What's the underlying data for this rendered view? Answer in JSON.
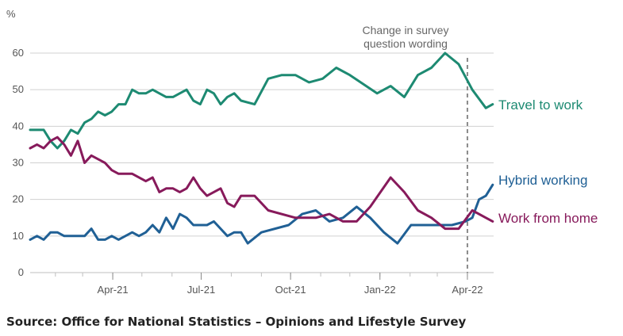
{
  "chart_data": {
    "type": "line",
    "y_unit_label": "%",
    "ylim": [
      0,
      60
    ],
    "y_ticks": [
      "0",
      "10",
      "20",
      "30",
      "40",
      "50",
      "60"
    ],
    "x_ticks": [
      {
        "label": "Apr-21",
        "date": "2021-04-01"
      },
      {
        "label": "Jul-21",
        "date": "2021-07-01"
      },
      {
        "label": "Oct-21",
        "date": "2021-10-01"
      },
      {
        "label": "Jan-22",
        "date": "2022-01-01"
      },
      {
        "label": "Apr-22",
        "date": "2022-04-01"
      }
    ],
    "x_range": [
      "2021-01-06",
      "2022-04-28"
    ],
    "grid": true,
    "annotation": {
      "lines": [
        "Change in survey",
        "question wording"
      ],
      "date": "2022-04-01"
    },
    "series": [
      {
        "name": "Travel to work",
        "color": "#1d8a72",
        "points": [
          [
            "2021-01-06",
            39
          ],
          [
            "2021-01-13",
            39
          ],
          [
            "2021-01-20",
            39
          ],
          [
            "2021-01-27",
            36
          ],
          [
            "2021-02-03",
            34
          ],
          [
            "2021-02-10",
            36
          ],
          [
            "2021-02-17",
            39
          ],
          [
            "2021-02-24",
            38
          ],
          [
            "2021-03-03",
            41
          ],
          [
            "2021-03-10",
            42
          ],
          [
            "2021-03-17",
            44
          ],
          [
            "2021-03-24",
            43
          ],
          [
            "2021-03-31",
            44
          ],
          [
            "2021-04-07",
            46
          ],
          [
            "2021-04-14",
            46
          ],
          [
            "2021-04-21",
            50
          ],
          [
            "2021-04-28",
            49
          ],
          [
            "2021-05-05",
            49
          ],
          [
            "2021-05-12",
            50
          ],
          [
            "2021-05-19",
            49
          ],
          [
            "2021-05-26",
            48
          ],
          [
            "2021-06-02",
            48
          ],
          [
            "2021-06-09",
            49
          ],
          [
            "2021-06-16",
            50
          ],
          [
            "2021-06-23",
            47
          ],
          [
            "2021-06-30",
            46
          ],
          [
            "2021-07-07",
            50
          ],
          [
            "2021-07-14",
            49
          ],
          [
            "2021-07-21",
            46
          ],
          [
            "2021-07-28",
            48
          ],
          [
            "2021-08-04",
            49
          ],
          [
            "2021-08-11",
            47
          ],
          [
            "2021-08-25",
            46
          ],
          [
            "2021-09-08",
            53
          ],
          [
            "2021-09-22",
            54
          ],
          [
            "2021-10-06",
            54
          ],
          [
            "2021-10-20",
            52
          ],
          [
            "2021-11-03",
            53
          ],
          [
            "2021-11-17",
            56
          ],
          [
            "2021-12-01",
            54
          ],
          [
            "2021-12-29",
            49
          ],
          [
            "2022-01-12",
            51
          ],
          [
            "2022-01-26",
            48
          ],
          [
            "2022-02-09",
            54
          ],
          [
            "2022-02-23",
            56
          ],
          [
            "2022-03-09",
            60
          ],
          [
            "2022-03-23",
            57
          ],
          [
            "2022-04-06",
            50
          ],
          [
            "2022-04-20",
            45
          ],
          [
            "2022-04-27",
            46
          ]
        ]
      },
      {
        "name": "Hybrid working",
        "color": "#206095",
        "points": [
          [
            "2021-01-06",
            9
          ],
          [
            "2021-01-13",
            10
          ],
          [
            "2021-01-20",
            9
          ],
          [
            "2021-01-27",
            11
          ],
          [
            "2021-02-03",
            11
          ],
          [
            "2021-02-10",
            10
          ],
          [
            "2021-02-24",
            10
          ],
          [
            "2021-03-03",
            10
          ],
          [
            "2021-03-10",
            12
          ],
          [
            "2021-03-17",
            9
          ],
          [
            "2021-03-24",
            9
          ],
          [
            "2021-03-31",
            10
          ],
          [
            "2021-04-07",
            9
          ],
          [
            "2021-04-21",
            11
          ],
          [
            "2021-04-28",
            10
          ],
          [
            "2021-05-05",
            11
          ],
          [
            "2021-05-12",
            13
          ],
          [
            "2021-05-19",
            11
          ],
          [
            "2021-05-26",
            15
          ],
          [
            "2021-06-02",
            12
          ],
          [
            "2021-06-09",
            16
          ],
          [
            "2021-06-16",
            15
          ],
          [
            "2021-06-23",
            13
          ],
          [
            "2021-07-07",
            13
          ],
          [
            "2021-07-14",
            14
          ],
          [
            "2021-07-28",
            10
          ],
          [
            "2021-08-04",
            11
          ],
          [
            "2021-08-11",
            11
          ],
          [
            "2021-08-18",
            8
          ],
          [
            "2021-09-01",
            11
          ],
          [
            "2021-09-29",
            13
          ],
          [
            "2021-10-13",
            16
          ],
          [
            "2021-10-27",
            17
          ],
          [
            "2021-11-10",
            14
          ],
          [
            "2021-11-24",
            15
          ],
          [
            "2021-12-08",
            18
          ],
          [
            "2021-12-22",
            15
          ],
          [
            "2022-01-05",
            11
          ],
          [
            "2022-01-19",
            8
          ],
          [
            "2022-02-02",
            13
          ],
          [
            "2022-02-16",
            13
          ],
          [
            "2022-03-02",
            13
          ],
          [
            "2022-03-16",
            13
          ],
          [
            "2022-03-30",
            14
          ],
          [
            "2022-04-06",
            15
          ],
          [
            "2022-04-13",
            20
          ],
          [
            "2022-04-20",
            21
          ],
          [
            "2022-04-27",
            24
          ]
        ]
      },
      {
        "name": "Work from home",
        "color": "#871a5b",
        "points": [
          [
            "2021-01-06",
            34
          ],
          [
            "2021-01-13",
            35
          ],
          [
            "2021-01-20",
            34
          ],
          [
            "2021-01-27",
            36
          ],
          [
            "2021-02-03",
            37
          ],
          [
            "2021-02-10",
            35
          ],
          [
            "2021-02-17",
            32
          ],
          [
            "2021-02-24",
            36
          ],
          [
            "2021-03-03",
            30
          ],
          [
            "2021-03-10",
            32
          ],
          [
            "2021-03-24",
            30
          ],
          [
            "2021-03-31",
            28
          ],
          [
            "2021-04-07",
            27
          ],
          [
            "2021-04-21",
            27
          ],
          [
            "2021-05-05",
            25
          ],
          [
            "2021-05-12",
            26
          ],
          [
            "2021-05-19",
            22
          ],
          [
            "2021-05-26",
            23
          ],
          [
            "2021-06-02",
            23
          ],
          [
            "2021-06-09",
            22
          ],
          [
            "2021-06-16",
            23
          ],
          [
            "2021-06-23",
            26
          ],
          [
            "2021-06-30",
            23
          ],
          [
            "2021-07-07",
            21
          ],
          [
            "2021-07-21",
            23
          ],
          [
            "2021-07-28",
            19
          ],
          [
            "2021-08-04",
            18
          ],
          [
            "2021-08-11",
            21
          ],
          [
            "2021-08-25",
            21
          ],
          [
            "2021-09-08",
            17
          ],
          [
            "2021-10-06",
            15
          ],
          [
            "2021-10-27",
            15
          ],
          [
            "2021-11-10",
            16
          ],
          [
            "2021-11-24",
            14
          ],
          [
            "2021-12-08",
            14
          ],
          [
            "2021-12-22",
            18
          ],
          [
            "2022-01-12",
            26
          ],
          [
            "2022-01-26",
            22
          ],
          [
            "2022-02-09",
            17
          ],
          [
            "2022-02-23",
            15
          ],
          [
            "2022-03-09",
            12
          ],
          [
            "2022-03-23",
            12
          ],
          [
            "2022-04-06",
            17
          ],
          [
            "2022-04-20",
            15
          ],
          [
            "2022-04-27",
            14
          ]
        ]
      }
    ]
  },
  "source": "Source: Office for National Statistics – Opinions and Lifestyle Survey"
}
